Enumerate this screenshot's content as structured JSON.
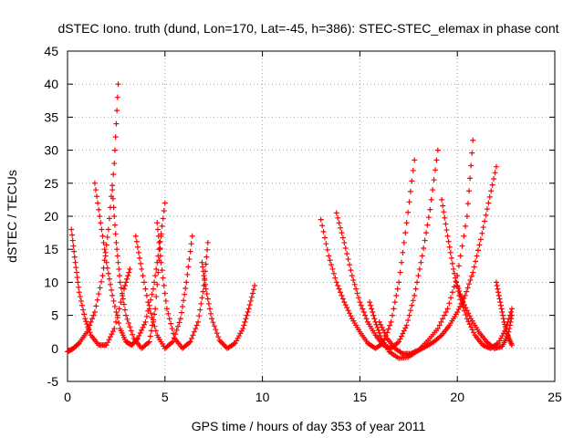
{
  "chart_data": {
    "type": "scatter",
    "title": "dSTEC Iono. truth (dund, Lon=170, Lat=-45, h=386): STEC-STEC_elemax in phase cont",
    "xlabel": "GPS time / hours of day 353 of year 2011",
    "ylabel": "dSTEC  / TECUs",
    "xlim": [
      0,
      25
    ],
    "ylim": [
      -5,
      45
    ],
    "xticks": [
      0,
      5,
      10,
      15,
      20,
      25
    ],
    "yticks": [
      -5,
      0,
      5,
      10,
      15,
      20,
      25,
      30,
      35,
      40,
      45
    ],
    "grid": true,
    "marker": "+",
    "color": "#ff0000",
    "series": [
      {
        "x": [
          0.0,
          0.3,
          0.6,
          1.0,
          1.4,
          1.8,
          2.1,
          2.4,
          2.6
        ],
        "y": [
          -0.5,
          0.0,
          0.8,
          2.5,
          5.5,
          11.0,
          18.0,
          28.0,
          40.0
        ]
      },
      {
        "x": [
          0.2,
          0.4,
          0.6,
          0.9,
          1.2,
          1.6,
          2.0,
          2.4,
          2.9,
          3.2
        ],
        "y": [
          18.0,
          13.0,
          8.5,
          4.5,
          2.0,
          0.5,
          0.5,
          3.0,
          9.0,
          12.0
        ]
      },
      {
        "x": [
          1.4,
          1.7,
          2.0,
          2.3,
          2.7,
          3.0,
          3.3,
          3.6,
          4.0,
          4.4,
          4.7,
          5.0
        ],
        "y": [
          25.0,
          19.0,
          13.0,
          8.0,
          3.0,
          1.0,
          0.5,
          1.5,
          4.0,
          9.0,
          15.0,
          22.0
        ]
      },
      {
        "x": [
          2.3,
          2.5,
          2.7,
          3.0,
          3.4,
          3.8,
          4.2,
          4.5,
          4.8
        ],
        "y": [
          24.0,
          16.0,
          10.0,
          5.0,
          1.5,
          0.0,
          1.0,
          6.0,
          17.0
        ]
      },
      {
        "x": [
          3.5,
          3.8,
          4.2,
          4.6,
          5.0,
          5.4,
          5.8,
          6.1,
          6.4
        ],
        "y": [
          17.0,
          12.0,
          6.0,
          2.0,
          0.0,
          1.0,
          4.5,
          10.0,
          17.0
        ]
      },
      {
        "x": [
          4.6,
          4.8,
          5.1,
          5.5,
          5.9,
          6.3,
          6.7,
          7.0,
          7.2
        ],
        "y": [
          19.0,
          13.0,
          6.0,
          1.5,
          0.0,
          1.0,
          4.0,
          9.5,
          16.0
        ]
      },
      {
        "x": [
          6.9,
          7.1,
          7.4,
          7.8,
          8.2,
          8.6,
          9.0,
          9.3,
          9.6
        ],
        "y": [
          13.0,
          9.0,
          4.5,
          1.2,
          0.0,
          0.8,
          3.0,
          6.0,
          9.5
        ]
      },
      {
        "x": [
          13.0,
          13.4,
          13.8,
          14.2,
          14.6,
          15.0,
          15.4,
          15.8,
          16.2,
          16.6,
          17.0,
          17.4,
          17.8
        ],
        "y": [
          19.5,
          14.0,
          10.0,
          7.0,
          4.5,
          2.5,
          0.8,
          0.0,
          0.8,
          4.0,
          10.0,
          19.0,
          28.5
        ]
      },
      {
        "x": [
          13.8,
          14.2,
          14.6,
          15.0,
          15.4,
          15.8,
          16.2,
          16.6,
          17.0,
          17.4,
          17.8,
          18.2,
          18.6,
          19.0
        ],
        "y": [
          20.5,
          16.0,
          11.0,
          7.0,
          4.0,
          2.0,
          0.5,
          0.0,
          1.0,
          3.5,
          8.0,
          14.0,
          21.0,
          30.0
        ]
      },
      {
        "x": [
          15.5,
          15.8,
          16.1,
          16.5,
          17.0,
          17.5,
          18.0,
          18.5,
          19.0,
          19.5,
          20.0,
          20.5,
          20.8
        ],
        "y": [
          7.0,
          4.0,
          1.5,
          -0.5,
          -1.5,
          -1.3,
          -0.3,
          1.2,
          3.0,
          6.0,
          11.0,
          20.0,
          31.5
        ]
      },
      {
        "x": [
          16.0,
          16.4,
          16.8,
          17.2,
          17.6,
          18.0,
          18.4,
          18.8,
          19.2,
          19.6,
          20.0,
          20.4,
          20.8,
          21.2,
          21.6,
          22.0
        ],
        "y": [
          4.0,
          1.5,
          0.0,
          -0.8,
          -0.8,
          -0.3,
          0.3,
          1.0,
          2.0,
          3.5,
          5.5,
          8.0,
          11.5,
          16.5,
          22.0,
          27.5
        ]
      },
      {
        "x": [
          19.2,
          19.5,
          19.8,
          20.1,
          20.5,
          20.9,
          21.3,
          21.7,
          22.1,
          22.5,
          22.8
        ],
        "y": [
          22.5,
          17.0,
          12.0,
          8.0,
          4.5,
          2.0,
          0.5,
          0.0,
          0.8,
          3.0,
          6.0
        ]
      },
      {
        "x": [
          20.0,
          20.3,
          20.7,
          21.1,
          21.5,
          21.9,
          22.3,
          22.6,
          22.8
        ],
        "y": [
          9.5,
          7.0,
          4.5,
          2.5,
          1.0,
          0.0,
          0.3,
          2.0,
          5.0
        ]
      },
      {
        "x": [
          22.0,
          22.2,
          22.4,
          22.6,
          22.8
        ],
        "y": [
          10.0,
          7.0,
          4.0,
          1.8,
          0.5
        ]
      }
    ]
  }
}
